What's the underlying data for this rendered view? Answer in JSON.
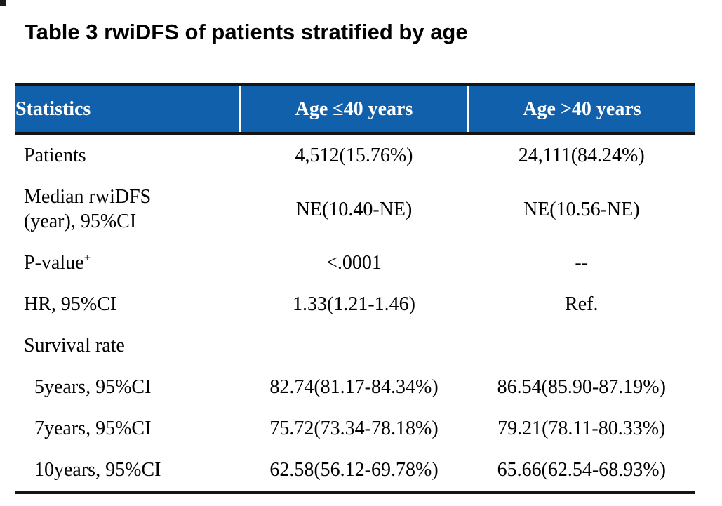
{
  "title": "Table 3 rwiDFS of patients stratified by age",
  "colors": {
    "header_bg": "#1060AC",
    "header_text": "#FFFFFF",
    "border": "#151515",
    "body_text": "#000000"
  },
  "table": {
    "columns": [
      {
        "label": "Statistics"
      },
      {
        "label": "Age ≤40 years"
      },
      {
        "label": "Age >40 years"
      }
    ],
    "rows": [
      {
        "label": "Patients",
        "values": [
          "4,512(15.76%)",
          "24,111(84.24%)"
        ]
      },
      {
        "label": "Median rwiDFS",
        "label_line2": "(year), 95%CI",
        "values": [
          "NE(10.40-NE)",
          "NE(10.56-NE)"
        ]
      },
      {
        "label": "P-value",
        "sup": "+",
        "values": [
          "<.0001",
          "--"
        ]
      },
      {
        "label": "HR, 95%CI",
        "values": [
          "1.33(1.21-1.46)",
          "Ref."
        ]
      },
      {
        "label": "Survival rate",
        "values": [
          "",
          ""
        ]
      },
      {
        "label": "5years, 95%CI",
        "indent": true,
        "values": [
          "82.74(81.17-84.34%)",
          "86.54(85.90-87.19%)"
        ]
      },
      {
        "label": "7years, 95%CI",
        "indent": true,
        "values": [
          "75.72(73.34-78.18%)",
          "79.21(78.11-80.33%)"
        ]
      },
      {
        "label": "10years, 95%CI",
        "indent": true,
        "values": [
          "62.58(56.12-69.78%)",
          "65.66(62.54-68.93%)"
        ]
      }
    ]
  }
}
